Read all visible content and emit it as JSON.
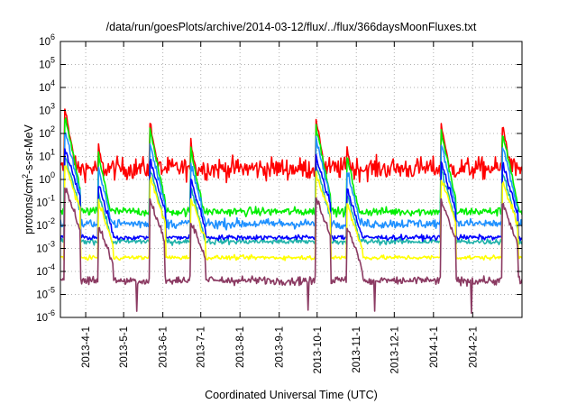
{
  "chart_data": {
    "type": "line",
    "title": "/data/run/goesPlots/archive/2014-03-12/flux/../flux/366daysMoonFluxes.txt",
    "xlabel": "Coordinated Universal Time (UTC)",
    "ylabel": {
      "pre": "protons/cm",
      "sup": "2",
      "post": "-s-sr-MeV"
    },
    "scale": {
      "y": "log"
    },
    "grid": true,
    "legend": "none",
    "xlim": [
      "2013-03-12",
      "2014-03-12"
    ],
    "ylim": [
      1e-06,
      1000000.0
    ],
    "x_ticks": [
      "2013-4-1",
      "2013-5-1",
      "2013-6-1",
      "2013-7-1",
      "2013-8-1",
      "2013-9-1",
      "2013-10-1",
      "2013-11-1",
      "2013-12-1",
      "2014-1-1",
      "2014-2-1"
    ],
    "y_ticks": [
      {
        "value": 1e-06,
        "base": "10",
        "exp": "-6"
      },
      {
        "value": 1e-05,
        "base": "10",
        "exp": "-5"
      },
      {
        "value": 0.0001,
        "base": "10",
        "exp": "-4"
      },
      {
        "value": 0.001,
        "base": "10",
        "exp": "-3"
      },
      {
        "value": 0.01,
        "base": "10",
        "exp": "-2"
      },
      {
        "value": 0.1,
        "base": "10",
        "exp": "-1"
      },
      {
        "value": 1.0,
        "base": "10",
        "exp": "0"
      },
      {
        "value": 10.0,
        "base": "10",
        "exp": "1"
      },
      {
        "value": 100.0,
        "base": "10",
        "exp": "2"
      },
      {
        "value": 1000.0,
        "base": "10",
        "exp": "3"
      },
      {
        "value": 10000.0,
        "base": "10",
        "exp": "4"
      },
      {
        "value": 100000.0,
        "base": "10",
        "exp": "5"
      },
      {
        "value": 1000000.0,
        "base": "10",
        "exp": "6"
      }
    ],
    "events": [
      {
        "date": "2013-03-16",
        "peak_flux": 1000
      },
      {
        "date": "2013-04-11",
        "peak_flux": 30
      },
      {
        "date": "2013-05-22",
        "peak_flux": 300
      },
      {
        "date": "2013-06-23",
        "peak_flux": 50
      },
      {
        "date": "2013-09-30",
        "peak_flux": 500
      },
      {
        "date": "2013-10-25",
        "peak_flux": 20
      },
      {
        "date": "2014-01-07",
        "peak_flux": 300
      },
      {
        "date": "2014-02-25",
        "peak_flux": 200
      }
    ],
    "series": [
      {
        "color": "#ff0000",
        "baseline": 3,
        "noise_decades": 0.45,
        "peak_scale": 1.0
      },
      {
        "color": "#00ee00",
        "baseline": 0.04,
        "noise_decades": 0.18,
        "peak_scale": 0.45
      },
      {
        "color": "#1e90ff",
        "baseline": 0.012,
        "noise_decades": 0.2,
        "peak_scale": 0.12
      },
      {
        "color": "#20b2aa",
        "baseline": 0.002,
        "noise_decades": 0.12,
        "peak_scale": 0.01
      },
      {
        "color": "#0000ff",
        "baseline": 0.003,
        "noise_decades": 0.1,
        "peak_scale": 0.02
      },
      {
        "color": "#ffff00",
        "baseline": 0.0004,
        "noise_decades": 0.09,
        "peak_scale": 0.004
      },
      {
        "color": "#8b3a62",
        "baseline": 4e-05,
        "noise_decades": 0.18,
        "peak_scale": 0.0004
      }
    ]
  }
}
